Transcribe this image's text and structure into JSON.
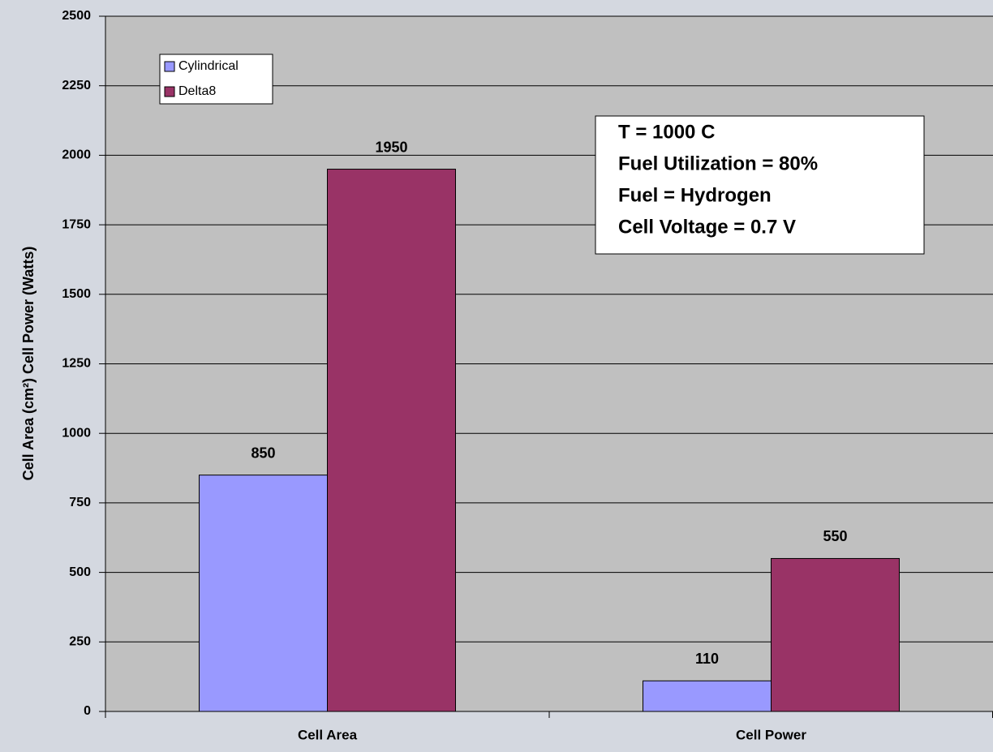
{
  "chart_data": {
    "type": "bar",
    "y_label": "Cell Area (cm²) Cell Power (Watts)",
    "categories": [
      "Cell Area",
      "Cell Power"
    ],
    "series": [
      {
        "name": "Cylindrical",
        "color": "#9999ff",
        "values": [
          850,
          110
        ]
      },
      {
        "name": "Delta8",
        "color": "#993366",
        "values": [
          1950,
          550
        ]
      }
    ],
    "ylim": [
      0,
      2500
    ],
    "yticks": [
      0,
      250,
      500,
      750,
      1000,
      1250,
      1500,
      1750,
      2000,
      2250,
      2500
    ],
    "grid": true,
    "legend": "top-left",
    "annotation": [
      "T = 1000 C",
      "Fuel Utilization = 80%",
      "Fuel = Hydrogen",
      "Cell Voltage = 0.7 V"
    ]
  }
}
